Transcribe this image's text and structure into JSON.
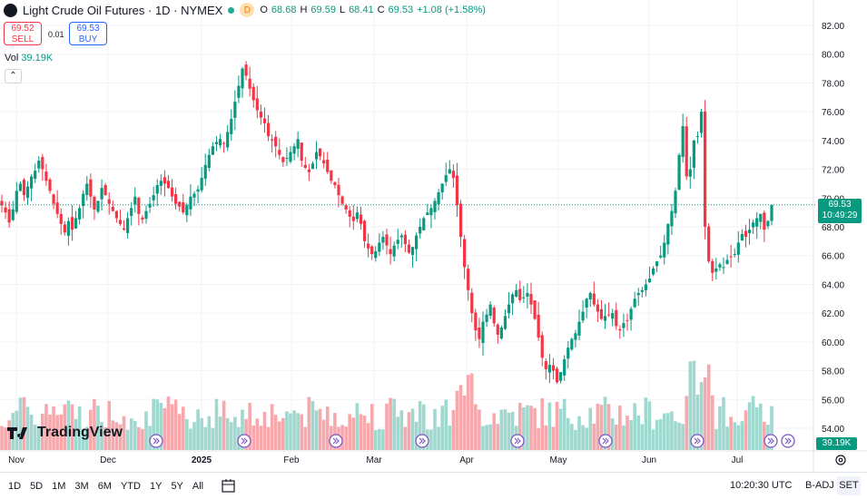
{
  "header": {
    "title": "Light Crude Oil Futures · 1D · NYMEX",
    "badge": "D",
    "open_label": "O",
    "open": "68.68",
    "high_label": "H",
    "high": "69.59",
    "low_label": "L",
    "low": "68.41",
    "close_label": "C",
    "close": "69.53",
    "change": "+1.08 (+1.58%)"
  },
  "trade": {
    "sell_price": "69.52",
    "sell_label": "SELL",
    "spread": "0.01",
    "buy_price": "69.53",
    "buy_label": "BUY"
  },
  "volume": {
    "label": "Vol",
    "value": "39.19K"
  },
  "brand": {
    "name": "TradingView"
  },
  "price_tag": {
    "price": "69.53",
    "countdown": "10:49:29"
  },
  "volume_tag": {
    "value": "39.19K"
  },
  "bottom_bar": {
    "ranges": [
      "1D",
      "5D",
      "1M",
      "3M",
      "6M",
      "YTD",
      "1Y",
      "5Y",
      "All"
    ],
    "time": "10:20:30 UTC",
    "adjust": "B-ADJ",
    "session": "SET"
  },
  "colors": {
    "up": "#089981",
    "down": "#f23645",
    "up_vol": "#9fd8cf",
    "down_vol": "#f7a8ac"
  },
  "chart_data": {
    "type": "candlestick",
    "title": "Light Crude Oil Futures · 1D · NYMEX",
    "y_axis": {
      "min": 52.5,
      "max": 82.5,
      "ticks": [
        54.0,
        56.0,
        58.0,
        60.0,
        62.0,
        64.0,
        66.0,
        68.0,
        70.0,
        72.0,
        74.0,
        76.0,
        78.0,
        80.0,
        82.0
      ]
    },
    "x_labels": [
      "Nov",
      "Dec",
      "2025",
      "Feb",
      "Mar",
      "Apr",
      "May",
      "Jun",
      "Jul"
    ],
    "last_price": 69.53,
    "closes": [
      69.5,
      69.0,
      68.3,
      69.2,
      70.5,
      71.0,
      70.2,
      70.8,
      71.5,
      71.9,
      72.6,
      72.0,
      71.2,
      70.5,
      69.6,
      68.9,
      68.2,
      67.6,
      68.4,
      67.8,
      68.6,
      69.3,
      70.3,
      71.0,
      70.1,
      69.2,
      69.8,
      70.7,
      70.2,
      69.6,
      69.1,
      68.6,
      68.2,
      67.8,
      68.6,
      69.3,
      70.1,
      68.9,
      68.5,
      69.1,
      69.6,
      70.2,
      70.9,
      71.2,
      71.0,
      70.7,
      70.1,
      69.6,
      69.4,
      69.0,
      69.5,
      70.1,
      70.3,
      70.6,
      71.4,
      72.3,
      73.0,
      73.6,
      73.9,
      74.1,
      73.8,
      74.6,
      75.5,
      76.7,
      77.8,
      79.0,
      78.5,
      77.6,
      76.8,
      76.1,
      75.6,
      75.2,
      74.3,
      74.0,
      73.6,
      73.0,
      72.5,
      72.8,
      73.2,
      73.6,
      74.1,
      72.6,
      72.1,
      71.8,
      72.4,
      73.2,
      72.9,
      72.4,
      71.8,
      71.2,
      70.9,
      70.2,
      69.6,
      69.2,
      68.7,
      68.4,
      69.0,
      68.2,
      67.0,
      66.5,
      66.1,
      66.3,
      66.9,
      67.3,
      66.7,
      66.1,
      66.7,
      67.1,
      67.4,
      66.8,
      66.2,
      66.6,
      67.4,
      68.0,
      68.6,
      69.0,
      69.3,
      69.8,
      70.4,
      71.0,
      71.6,
      72.0,
      71.4,
      69.5,
      67.3,
      65.2,
      63.6,
      62.0,
      60.8,
      60.2,
      61.4,
      61.9,
      62.6,
      61.3,
      60.5,
      61.0,
      61.8,
      62.6,
      63.3,
      63.6,
      62.9,
      63.1,
      63.4,
      62.6,
      61.6,
      60.3,
      58.9,
      58.1,
      58.4,
      58.0,
      57.2,
      57.9,
      58.8,
      59.6,
      60.2,
      60.6,
      61.4,
      62.1,
      63.0,
      63.4,
      62.6,
      62.1,
      61.6,
      61.8,
      61.9,
      62.0,
      61.1,
      60.8,
      61.3,
      61.5,
      62.3,
      63.0,
      63.4,
      63.6,
      64.0,
      64.4,
      65.1,
      65.6,
      66.0,
      66.9,
      68.2,
      69.1,
      70.5,
      73.0,
      75.0,
      71.5,
      72.0,
      74.0,
      74.3,
      76.0,
      68.0,
      65.6,
      64.8,
      65.1,
      65.4,
      65.2,
      65.7,
      65.9,
      66.1,
      66.9,
      67.5,
      67.3,
      67.8,
      68.3,
      68.6,
      68.9,
      67.8,
      68.4,
      69.53
    ]
  }
}
